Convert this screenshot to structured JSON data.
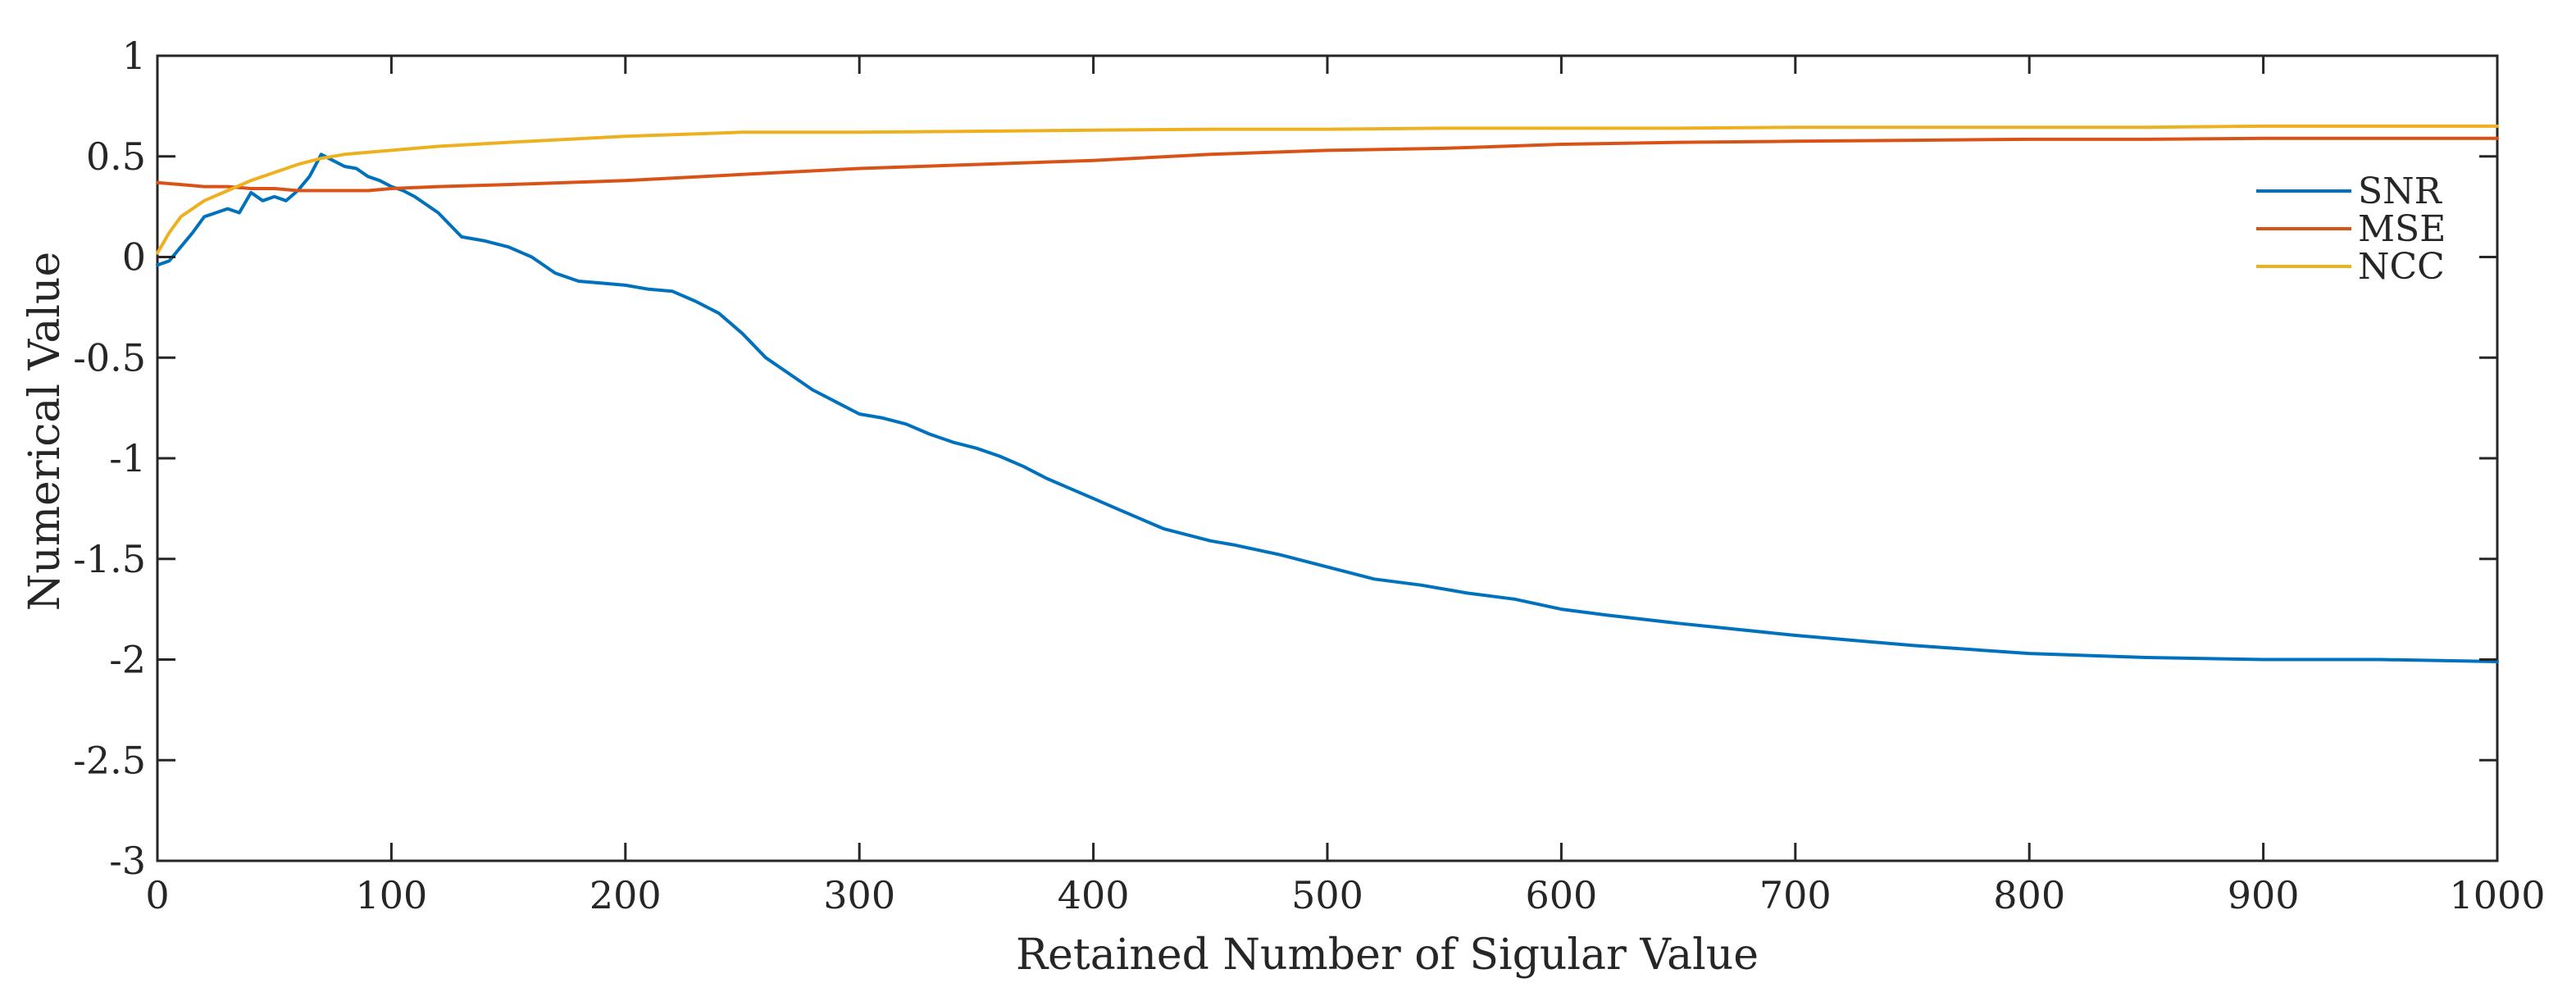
{
  "chart_data": {
    "type": "line",
    "title": "",
    "xlabel": "Retained Number of Sigular Value",
    "ylabel": "Numerical Value",
    "xlim": [
      0,
      1000
    ],
    "ylim": [
      -3,
      1
    ],
    "xticks": [
      0,
      100,
      200,
      300,
      400,
      500,
      600,
      700,
      800,
      900,
      1000
    ],
    "yticks": [
      1,
      0.5,
      0,
      -0.5,
      -1,
      -1.5,
      -2,
      -2.5,
      -3
    ],
    "xtick_labels": [
      "0",
      "100",
      "200",
      "300",
      "400",
      "500",
      "600",
      "700",
      "800",
      "900",
      "1000"
    ],
    "ytick_labels": [
      "1",
      "0.5",
      "0",
      "-0.5",
      "-1",
      "-1.5",
      "-2",
      "-2.5",
      "-3"
    ],
    "grid": false,
    "legend_position": "right",
    "series": [
      {
        "name": "SNR",
        "color": "#0072BD",
        "x": [
          0,
          5,
          10,
          15,
          20,
          25,
          30,
          35,
          40,
          45,
          50,
          55,
          60,
          65,
          70,
          75,
          80,
          85,
          90,
          95,
          100,
          105,
          110,
          120,
          130,
          140,
          150,
          160,
          170,
          180,
          190,
          200,
          210,
          220,
          230,
          240,
          250,
          260,
          270,
          280,
          290,
          300,
          310,
          320,
          330,
          340,
          350,
          360,
          370,
          380,
          390,
          400,
          410,
          420,
          430,
          440,
          450,
          460,
          480,
          500,
          520,
          540,
          560,
          580,
          600,
          620,
          650,
          700,
          750,
          800,
          850,
          900,
          950,
          1000
        ],
        "values": [
          -0.04,
          -0.02,
          0.05,
          0.12,
          0.2,
          0.22,
          0.24,
          0.22,
          0.32,
          0.28,
          0.3,
          0.28,
          0.33,
          0.4,
          0.51,
          0.48,
          0.45,
          0.44,
          0.4,
          0.38,
          0.35,
          0.33,
          0.3,
          0.22,
          0.1,
          0.08,
          0.05,
          0.0,
          -0.08,
          -0.12,
          -0.13,
          -0.14,
          -0.16,
          -0.17,
          -0.22,
          -0.28,
          -0.38,
          -0.5,
          -0.58,
          -0.66,
          -0.72,
          -0.78,
          -0.8,
          -0.83,
          -0.88,
          -0.92,
          -0.95,
          -0.99,
          -1.04,
          -1.1,
          -1.15,
          -1.2,
          -1.25,
          -1.3,
          -1.35,
          -1.38,
          -1.41,
          -1.43,
          -1.48,
          -1.54,
          -1.6,
          -1.63,
          -1.67,
          -1.7,
          -1.75,
          -1.78,
          -1.82,
          -1.88,
          -1.93,
          -1.97,
          -1.99,
          -2.0,
          -2.0,
          -2.01
        ]
      },
      {
        "name": "MSE",
        "color": "#D95319",
        "x": [
          0,
          10,
          20,
          30,
          40,
          50,
          60,
          70,
          80,
          90,
          100,
          120,
          150,
          200,
          250,
          300,
          350,
          400,
          450,
          500,
          550,
          600,
          650,
          700,
          750,
          800,
          850,
          900,
          950,
          1000
        ],
        "values": [
          0.37,
          0.36,
          0.35,
          0.35,
          0.34,
          0.34,
          0.33,
          0.33,
          0.33,
          0.33,
          0.34,
          0.35,
          0.36,
          0.38,
          0.41,
          0.44,
          0.46,
          0.48,
          0.51,
          0.53,
          0.54,
          0.56,
          0.57,
          0.575,
          0.58,
          0.585,
          0.585,
          0.59,
          0.59,
          0.59
        ]
      },
      {
        "name": "NCC",
        "color": "#EDB120",
        "x": [
          0,
          5,
          10,
          20,
          30,
          40,
          50,
          60,
          70,
          80,
          90,
          100,
          120,
          150,
          200,
          250,
          300,
          350,
          400,
          450,
          500,
          550,
          600,
          650,
          700,
          750,
          800,
          850,
          900,
          950,
          1000
        ],
        "values": [
          0.02,
          0.12,
          0.2,
          0.28,
          0.33,
          0.38,
          0.42,
          0.46,
          0.49,
          0.51,
          0.52,
          0.53,
          0.55,
          0.57,
          0.6,
          0.62,
          0.62,
          0.625,
          0.63,
          0.635,
          0.635,
          0.64,
          0.64,
          0.64,
          0.645,
          0.645,
          0.645,
          0.645,
          0.65,
          0.65,
          0.65
        ]
      }
    ]
  }
}
